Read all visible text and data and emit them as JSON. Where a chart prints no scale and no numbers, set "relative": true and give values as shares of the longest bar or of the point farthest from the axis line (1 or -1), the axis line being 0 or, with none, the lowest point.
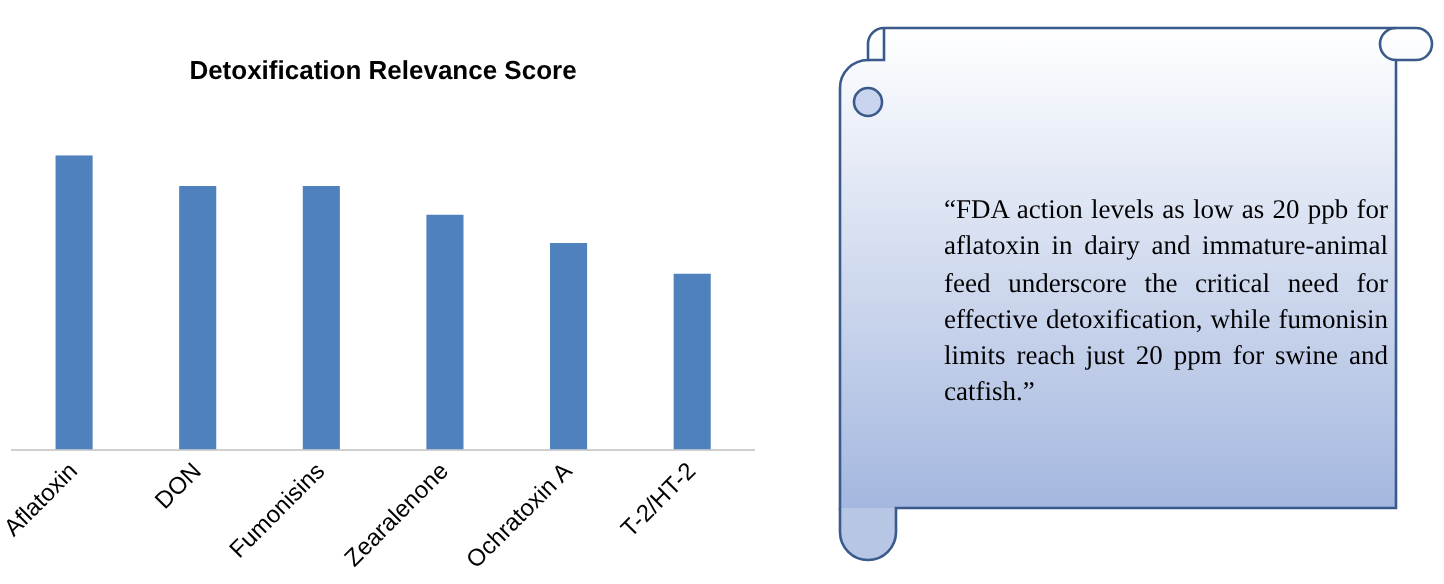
{
  "chart_data": {
    "type": "bar",
    "title": "Detoxification Relevance Score",
    "categories": [
      "Aflatoxin",
      "DON",
      "Fumonisins",
      "Zearalenone",
      "Ochratoxin A",
      "T-2/HT-2"
    ],
    "values": [
      1,
      0.895,
      0.895,
      0.798,
      0.702,
      0.597
    ],
    "color": "#4f81bd",
    "relative": true,
    "grid": false,
    "legend": false,
    "annotations": [
      "“FDA action levels as low as 20 ppb for aflatoxin in dairy and immature-animal feed underscore the critical need for effective detoxification, while fumonisin limits reach just 20 ppm for swine and catfish.”"
    ]
  }
}
